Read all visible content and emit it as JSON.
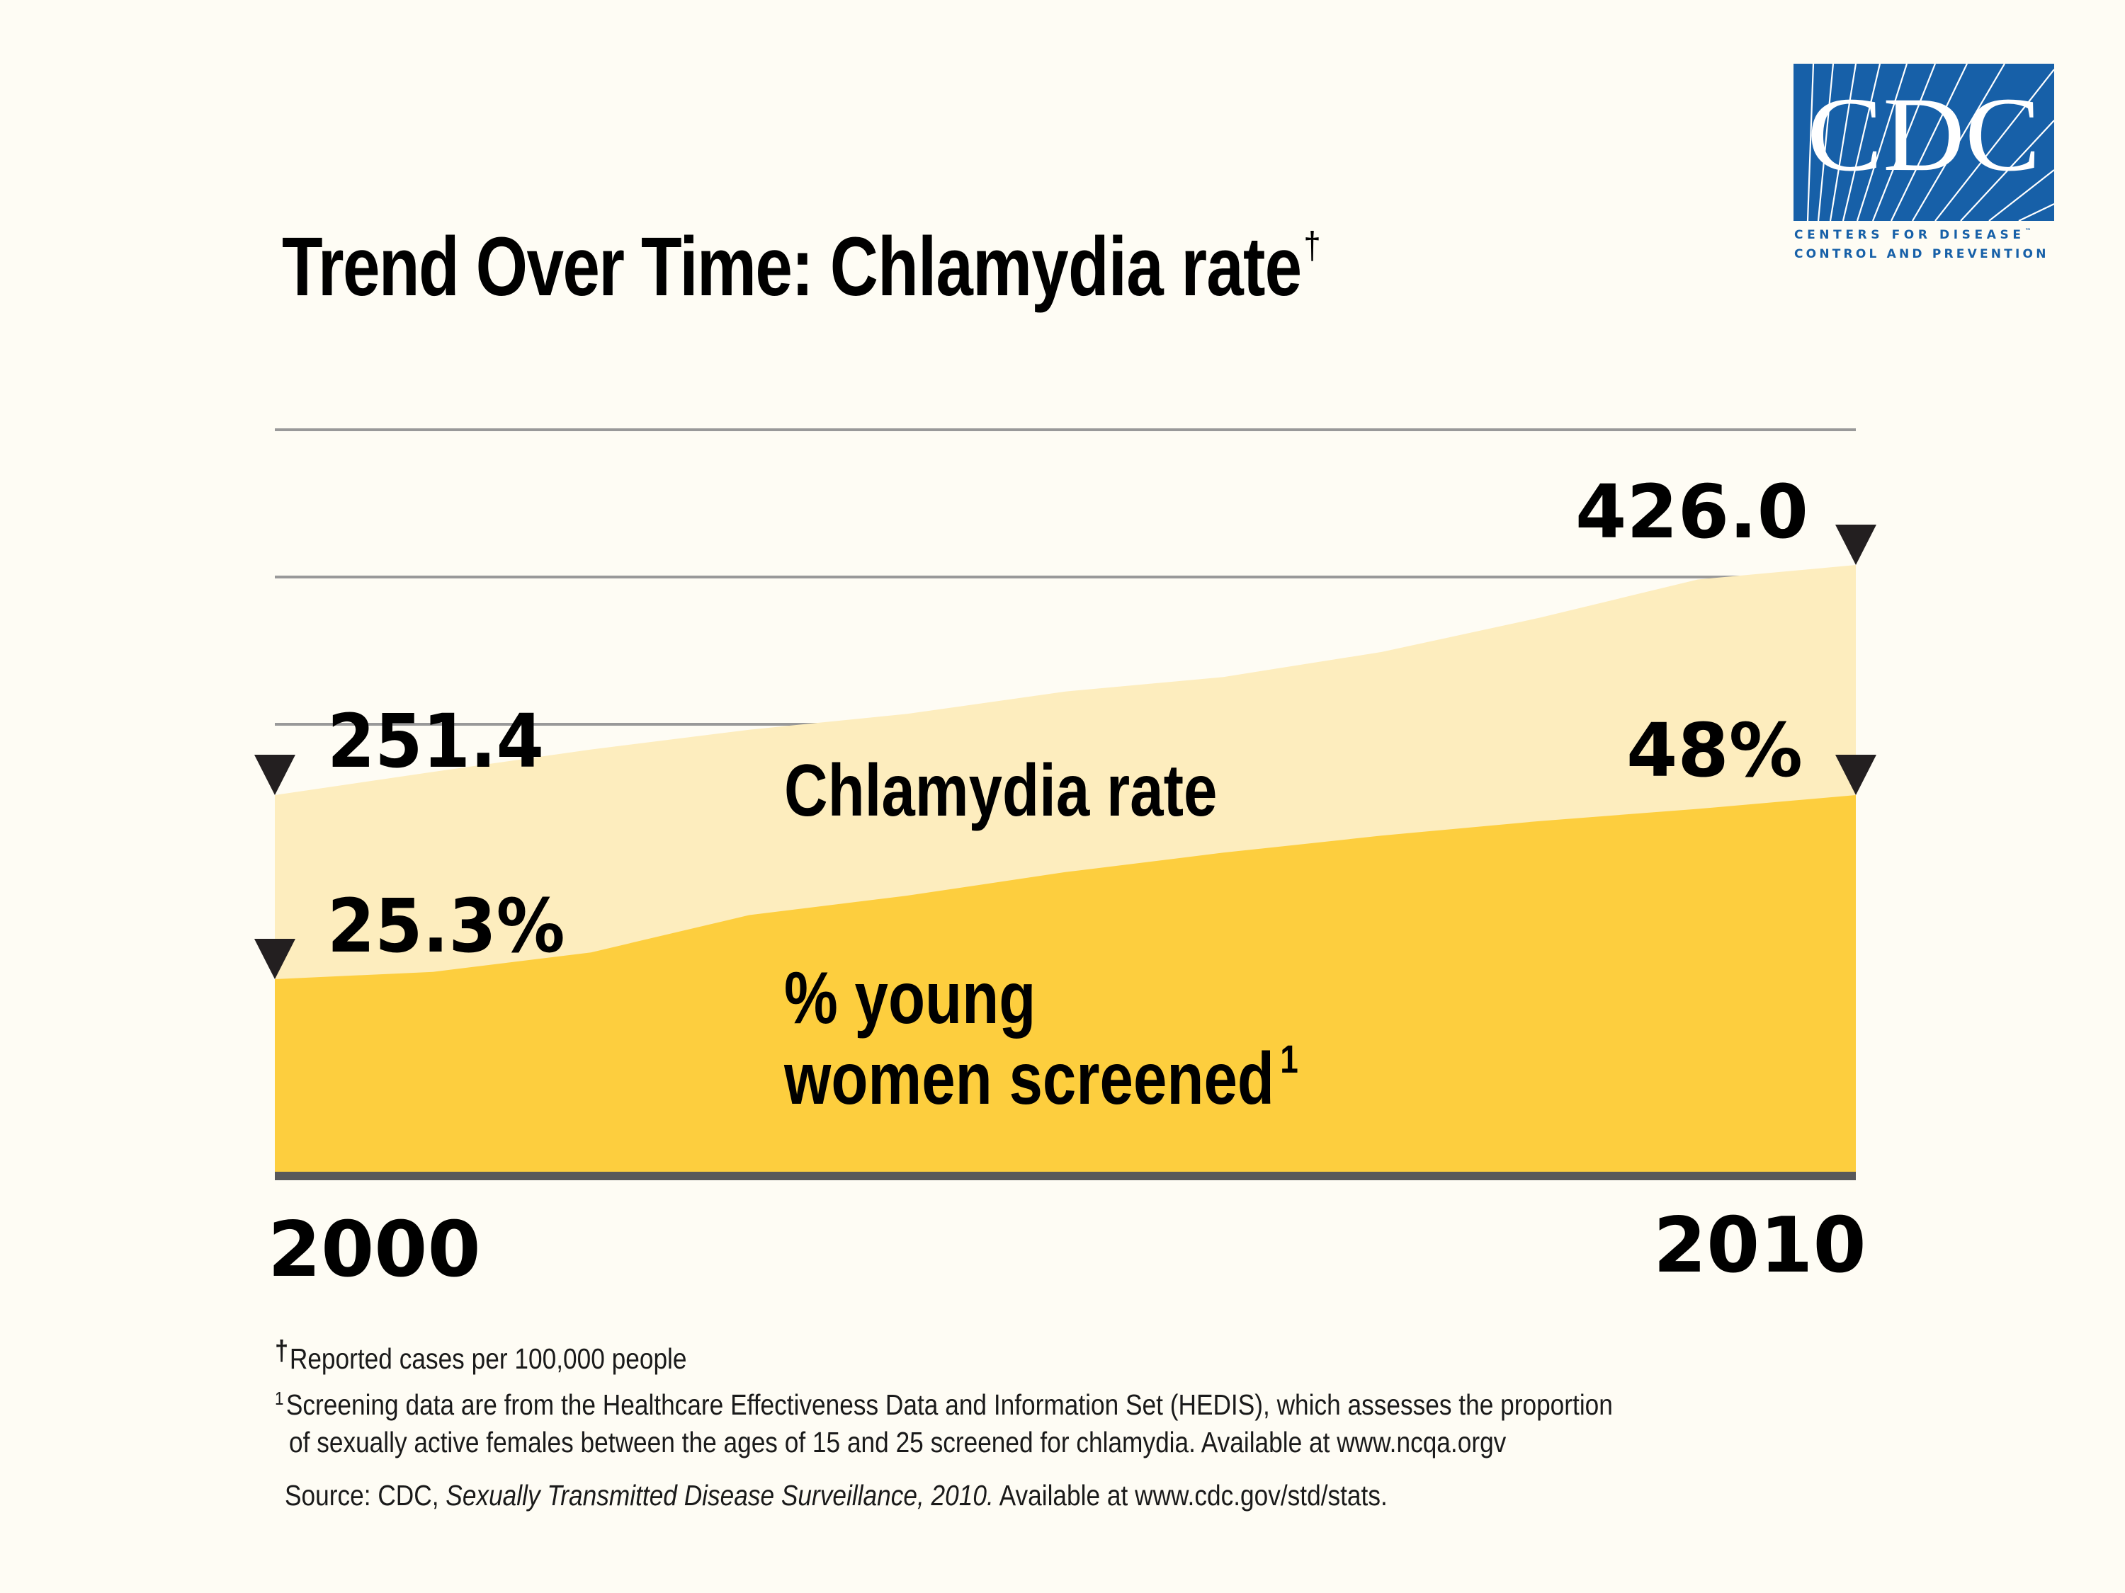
{
  "logo": {
    "letters": "CDC",
    "line1": "Centers for Disease",
    "trademark": "™",
    "line2": "Control and Prevention",
    "brand_color": "#1760A8"
  },
  "title": {
    "bold_part": "Trend Over Time:",
    "rest": "Chlamydia rate",
    "marker": "†"
  },
  "chart_data": {
    "type": "area",
    "title": "Trend Over Time: Chlamydia rate†",
    "xlabel": "",
    "ylabel": "",
    "x": [
      2000,
      2001,
      2002,
      2003,
      2004,
      2005,
      2006,
      2007,
      2008,
      2009,
      2010
    ],
    "x_tick_labels": [
      "2000",
      "2010"
    ],
    "grid": "horizontal",
    "series": [
      {
        "name": "Chlamydia rate",
        "units": "reported cases per 100,000 people",
        "color": "#FDEDBE",
        "values": [
          251.4,
          269,
          286,
          301,
          313,
          330,
          341,
          360,
          386,
          415,
          426.0
        ],
        "labels": {
          "start": "251.4",
          "end": "426.0"
        }
      },
      {
        "name": "% young women screened",
        "units": "percent",
        "color": "#FDCE3E",
        "values": [
          25.3,
          26.2,
          28.6,
          33.2,
          35.6,
          38.5,
          40.9,
          43.0,
          44.8,
          46.3,
          48
        ],
        "labels": {
          "start": "25.3%",
          "end": "48%"
        }
      }
    ],
    "series_labels": {
      "rate": "Chlamydia rate",
      "screen_line1": "% young",
      "screen_line2": "women screened",
      "screen_marker": "1"
    },
    "colors": {
      "gridline": "#999999",
      "baseline": "#58585A",
      "marker": "#231F20"
    }
  },
  "footnotes": {
    "dagger_mark": "†",
    "dagger_text": "Reported cases per 100,000 people",
    "screen_mark": "1",
    "screen_text_1": "Screening data are from the Healthcare Effectiveness Data and Information Set (HEDIS),  which assesses the proportion",
    "screen_text_2": "of sexually active females between the ages of 15 and 25 screened for chlamydia. Available at www.ncqa.orgv",
    "source_prefix": "Source:  CDC, ",
    "source_italic": "Sexually Transmitted Disease Surveillance, 2010.",
    "source_suffix": "  Available at www.cdc.gov/std/stats."
  }
}
